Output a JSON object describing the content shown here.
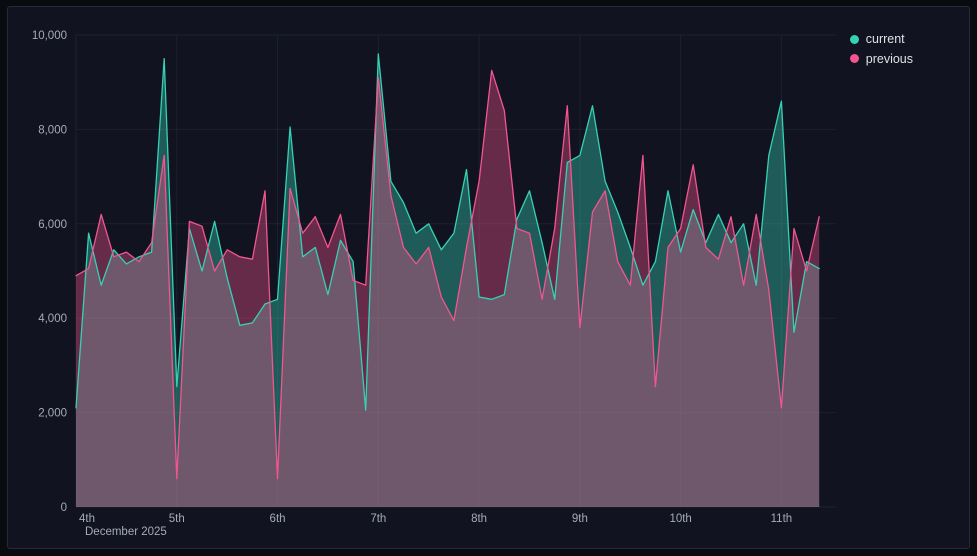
{
  "panel": {
    "type": "time-series-panel",
    "x_secondary_label": "December 2025"
  },
  "legend": {
    "position": "top-right",
    "items": [
      {
        "label": "current",
        "color": "#36d1b5"
      },
      {
        "label": "previous",
        "color": "#f2558f"
      }
    ]
  },
  "chart_data": {
    "type": "area",
    "title": "",
    "xlabel": "December 2025",
    "ylabel": "",
    "grid": true,
    "legend_position": "top-right",
    "x_unit": "hours since Dec 4 2025 00:00",
    "xlim": [
      0,
      181
    ],
    "ylim": [
      0,
      10000
    ],
    "x": [
      0,
      3,
      6,
      9,
      12,
      15,
      18,
      21,
      24,
      27,
      30,
      33,
      36,
      39,
      42,
      45,
      48,
      51,
      54,
      57,
      60,
      63,
      66,
      69,
      72,
      75,
      78,
      81,
      84,
      87,
      90,
      93,
      96,
      99,
      102,
      105,
      108,
      111,
      114,
      117,
      120,
      123,
      126,
      129,
      132,
      135,
      138,
      141,
      144,
      147,
      150,
      153,
      156,
      159,
      162,
      165,
      168,
      171,
      174,
      177
    ],
    "series": [
      {
        "name": "current",
        "color": "#36d1b5",
        "fill_opacity": 0.38,
        "values": [
          2100,
          5800,
          4700,
          5450,
          5150,
          5300,
          5400,
          9500,
          2550,
          5900,
          5000,
          6050,
          4850,
          3850,
          3900,
          4300,
          4400,
          8050,
          5300,
          5500,
          4500,
          5650,
          5200,
          2050,
          9600,
          6900,
          6450,
          5800,
          6000,
          5450,
          5800,
          7150,
          4450,
          4400,
          4500,
          6100,
          6700,
          5600,
          4400,
          7300,
          7450,
          8500,
          6900,
          6250,
          5500,
          4700,
          5200,
          6700,
          5400,
          6300,
          5600,
          6200,
          5600,
          6000,
          4700,
          7450,
          8600,
          3700,
          5200,
          5050
        ]
      },
      {
        "name": "previous",
        "color": "#f2558f",
        "fill_opacity": 0.38,
        "values": [
          4900,
          5050,
          6200,
          5300,
          5400,
          5200,
          5600,
          7450,
          600,
          6050,
          5950,
          5000,
          5450,
          5300,
          5250,
          6700,
          600,
          6750,
          5800,
          6150,
          5500,
          6200,
          4800,
          4700,
          9100,
          6600,
          5500,
          5150,
          5500,
          4450,
          3950,
          5500,
          6900,
          9250,
          8400,
          5900,
          5800,
          4400,
          5900,
          8500,
          3800,
          6250,
          6700,
          5200,
          4700,
          7450,
          2550,
          5500,
          5900,
          7250,
          5500,
          5250,
          6150,
          4700,
          6200,
          4600,
          2100,
          5900,
          5000,
          6150
        ]
      }
    ],
    "y_ticks": [
      {
        "v": 0,
        "label": "0"
      },
      {
        "v": 2000,
        "label": "2,000"
      },
      {
        "v": 4000,
        "label": "4,000"
      },
      {
        "v": 6000,
        "label": "6,000"
      },
      {
        "v": 8000,
        "label": "8,000"
      },
      {
        "v": 10000,
        "label": "10,000"
      }
    ],
    "x_ticks": [
      {
        "t": 0,
        "label": "4th"
      },
      {
        "t": 24,
        "label": "5th"
      },
      {
        "t": 48,
        "label": "6th"
      },
      {
        "t": 72,
        "label": "7th"
      },
      {
        "t": 96,
        "label": "8th"
      },
      {
        "t": 120,
        "label": "9th"
      },
      {
        "t": 144,
        "label": "10th"
      },
      {
        "t": 168,
        "label": "11th"
      }
    ],
    "style": {
      "grid_color": "rgba(204,214,235,0.07)",
      "tick_color": "#a6abb5",
      "secondary_label_color": "#a6abb5",
      "line_width": 1.3
    }
  }
}
